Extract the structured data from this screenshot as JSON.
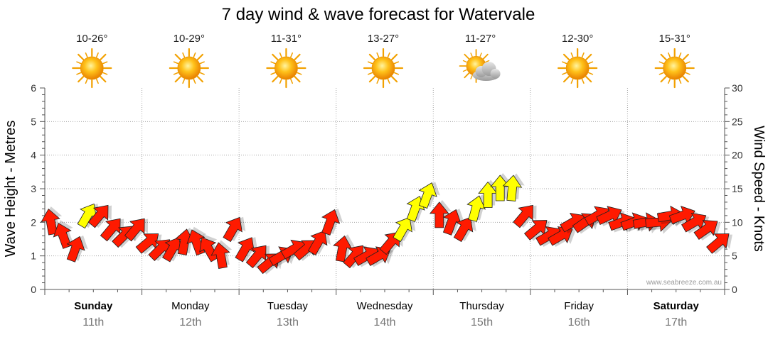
{
  "chart_data": {
    "type": "line",
    "title": "7 day wind & wave forecast for Watervale",
    "ylabel_left": "Wave Height - Metres",
    "ylabel_right": "Wind Speed - Knots",
    "ylim_left": [
      0,
      6
    ],
    "ylim_right": [
      0,
      30
    ],
    "yticks_left": [
      "0",
      "1",
      "2",
      "3",
      "4",
      "5",
      "6"
    ],
    "yticks_right": [
      "0",
      "5",
      "10",
      "15",
      "20",
      "25",
      "30"
    ],
    "grid": true,
    "credit": "www.seabreeze.com.au",
    "days": [
      {
        "name": "Sunday",
        "date": "11th",
        "temp": "10-26°",
        "weather": "sunny",
        "bold": true
      },
      {
        "name": "Monday",
        "date": "12th",
        "temp": "10-29°",
        "weather": "sunny",
        "bold": false
      },
      {
        "name": "Tuesday",
        "date": "13th",
        "temp": "11-31°",
        "weather": "sunny",
        "bold": false
      },
      {
        "name": "Wednesday",
        "date": "14th",
        "temp": "13-27°",
        "weather": "sunny",
        "bold": false
      },
      {
        "name": "Thursday",
        "date": "15th",
        "temp": "11-27°",
        "weather": "partly-cloudy",
        "bold": false
      },
      {
        "name": "Friday",
        "date": "16th",
        "temp": "12-30°",
        "weather": "sunny",
        "bold": false
      },
      {
        "name": "Saturday",
        "date": "17th",
        "temp": "15-31°",
        "weather": "sunny",
        "bold": true
      }
    ],
    "series": [
      {
        "name": "Wind Speed (knots)",
        "step_hours": 3,
        "values": [
          10,
          8,
          6,
          11,
          11,
          9,
          8,
          9,
          7,
          6,
          6,
          7,
          7,
          6,
          5,
          9,
          6,
          5,
          4,
          5,
          6,
          6,
          7,
          10,
          6,
          5,
          5,
          5,
          7,
          9,
          12,
          14,
          11,
          10,
          9,
          12,
          14,
          15,
          15,
          11,
          9,
          8,
          8,
          10,
          10,
          11,
          11,
          10,
          10,
          10,
          10,
          11,
          11,
          10,
          9,
          7
        ],
        "direction_deg": [
          190,
          200,
          160,
          150,
          140,
          140,
          135,
          140,
          130,
          135,
          150,
          170,
          200,
          210,
          190,
          150,
          150,
          140,
          130,
          120,
          120,
          130,
          150,
          160,
          170,
          140,
          120,
          120,
          140,
          150,
          160,
          160,
          180,
          160,
          150,
          165,
          180,
          180,
          175,
          140,
          130,
          120,
          120,
          120,
          125,
          120,
          115,
          110,
          110,
          100,
          95,
          100,
          110,
          120,
          125,
          130
        ],
        "gusty": [
          false,
          false,
          false,
          true,
          false,
          false,
          false,
          false,
          false,
          false,
          false,
          false,
          false,
          false,
          false,
          false,
          false,
          false,
          false,
          false,
          false,
          false,
          false,
          false,
          false,
          false,
          false,
          false,
          false,
          true,
          true,
          true,
          false,
          false,
          false,
          true,
          true,
          true,
          true,
          false,
          false,
          false,
          false,
          false,
          false,
          false,
          false,
          false,
          false,
          false,
          false,
          false,
          false,
          false,
          false,
          false
        ]
      }
    ]
  }
}
